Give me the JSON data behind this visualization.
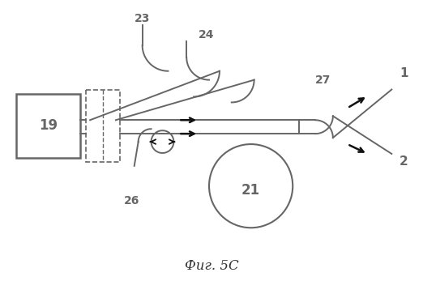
{
  "title": "Фиг. 5C",
  "title_fontsize": 12,
  "bg_color": "#ffffff",
  "label_19": "19",
  "label_21": "21",
  "label_23": "23",
  "label_24": "24",
  "label_26": "26",
  "label_27": "27",
  "label_1": "1",
  "label_2": "2",
  "lc": "#666666",
  "ac": "#111111"
}
